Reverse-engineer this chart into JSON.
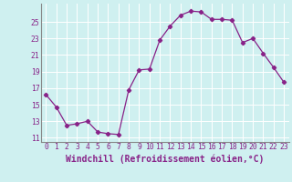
{
  "x": [
    0,
    1,
    2,
    3,
    4,
    5,
    6,
    7,
    8,
    9,
    10,
    11,
    12,
    13,
    14,
    15,
    16,
    17,
    18,
    19,
    20,
    21,
    22,
    23
  ],
  "y": [
    16.2,
    14.7,
    12.5,
    12.7,
    13.0,
    11.7,
    11.5,
    11.4,
    16.8,
    19.2,
    19.3,
    22.8,
    24.5,
    25.8,
    26.3,
    26.2,
    25.3,
    25.3,
    25.2,
    22.5,
    23.0,
    21.2,
    19.5,
    17.7
  ],
  "line_color": "#882288",
  "marker": "D",
  "marker_size": 2.2,
  "background_color": "#cff0f0",
  "grid_color": "#ffffff",
  "xlabel": "Windchill (Refroidissement éolien,°C)",
  "ylabel": "",
  "ylim": [
    10.5,
    27.2
  ],
  "xlim": [
    -0.5,
    23.5
  ],
  "yticks": [
    11,
    13,
    15,
    17,
    19,
    21,
    23,
    25
  ],
  "xticks": [
    0,
    1,
    2,
    3,
    4,
    5,
    6,
    7,
    8,
    9,
    10,
    11,
    12,
    13,
    14,
    15,
    16,
    17,
    18,
    19,
    20,
    21,
    22,
    23
  ],
  "tick_label_fontsize": 5.8,
  "xlabel_fontsize": 7.0,
  "tick_color": "#882288",
  "label_color": "#882288",
  "spine_color": "#888888"
}
